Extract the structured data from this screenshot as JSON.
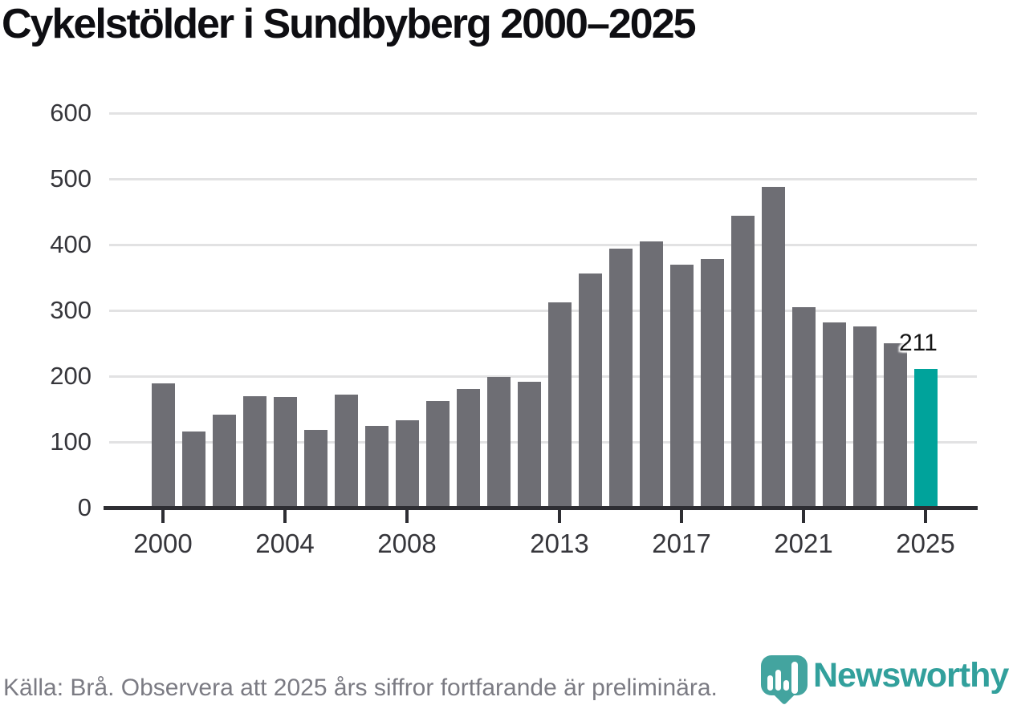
{
  "title": "Cykelstölder i Sundbyberg 2000–2025",
  "source_note": "Källa: Brå. Observera att 2025 års siffror fortfarande är preliminära.",
  "branding": {
    "logo_text": "Newsworthy",
    "logo_icon": "newsworthy-pin-barchart-icon"
  },
  "colors": {
    "bar_default": "#6e6e74",
    "bar_highlight": "#00a39b",
    "axis": "#2e2e33",
    "gridline": "#e2e2e3",
    "tick_label": "#36363b",
    "title_text": "#0e0e12",
    "annotation_text": "#141414",
    "source_text": "#7b7b83",
    "brand_teal": "#32a09c",
    "logo_bubble": "#43a49f"
  },
  "chart_data": {
    "type": "bar",
    "title": "Cykelstölder i Sundbyberg 2000–2025",
    "xlabel": "",
    "ylabel": "",
    "x": [
      2000,
      2001,
      2002,
      2003,
      2004,
      2005,
      2006,
      2007,
      2008,
      2009,
      2010,
      2011,
      2012,
      2013,
      2014,
      2015,
      2016,
      2017,
      2018,
      2019,
      2020,
      2021,
      2022,
      2023,
      2024,
      2025
    ],
    "values": [
      189,
      116,
      142,
      169,
      168,
      118,
      172,
      124,
      133,
      162,
      180,
      199,
      192,
      312,
      356,
      394,
      405,
      370,
      378,
      444,
      488,
      305,
      282,
      275,
      250,
      211
    ],
    "highlight_year": 2025,
    "annotation": {
      "year": 2025,
      "label": "211"
    },
    "ylim": [
      0,
      600
    ],
    "yticks": [
      0,
      100,
      200,
      300,
      400,
      500,
      600
    ],
    "xticks": [
      2000,
      2004,
      2008,
      2013,
      2017,
      2021,
      2025
    ],
    "grid": "horizontal",
    "legend": "none",
    "note": "values other than 2025 estimated from gridlines"
  }
}
